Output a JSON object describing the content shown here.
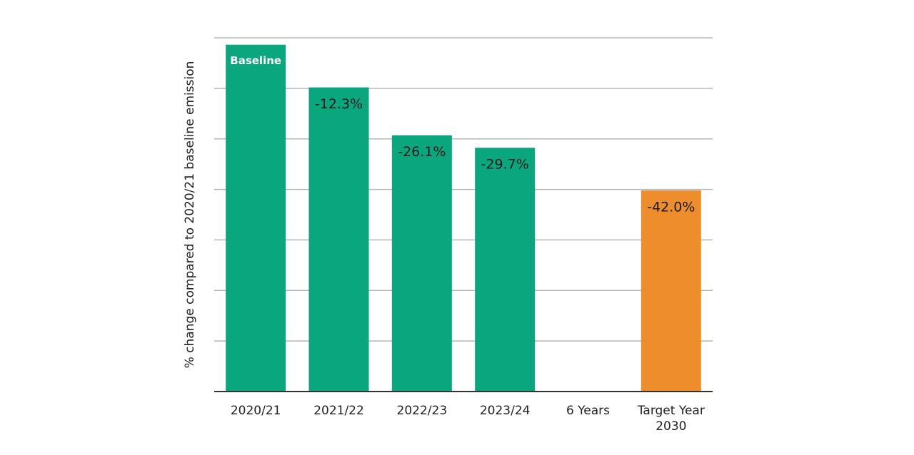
{
  "chart_data": {
    "type": "bar",
    "y_label": "% change compared to 2020/21 baseline emission",
    "categories": [
      "2020/21",
      "2021/22",
      "2022/23",
      "2023/24",
      "6 Years",
      "Target Year 2030"
    ],
    "values": [
      0,
      -12.3,
      -26.1,
      -29.7,
      null,
      -42.0
    ],
    "value_labels": [
      "Baseline",
      "-12.3%",
      "-26.1%",
      "-29.7%",
      null,
      "-42.0%"
    ],
    "colors": [
      "#0aa67e",
      "#0aa67e",
      "#0aa67e",
      "#0aa67e",
      "#0aa67e",
      "#ee8d2c"
    ],
    "ylim": [
      -100,
      2
    ],
    "grid": true
  }
}
